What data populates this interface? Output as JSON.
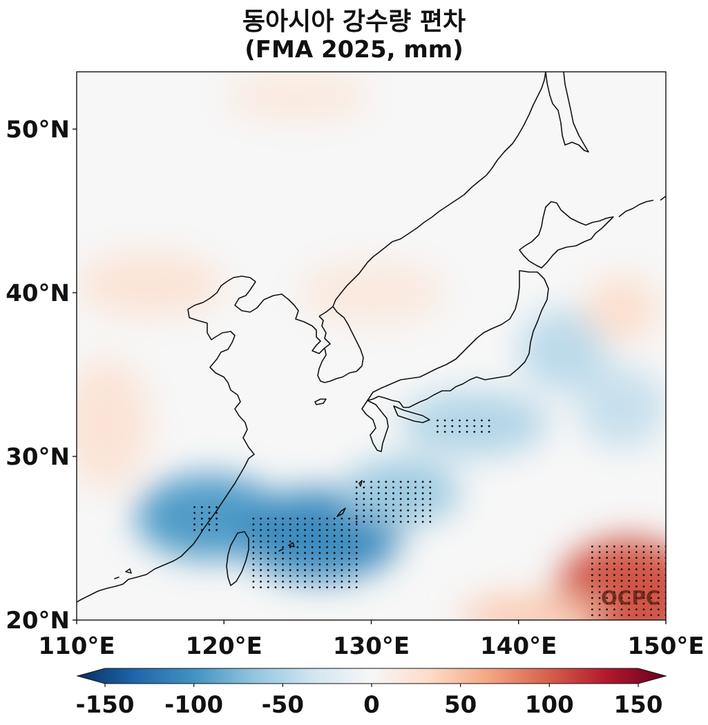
{
  "title": "동아시아 강수량 편차",
  "subtitle": "(FMA 2025, mm)",
  "watermark": "OCPC",
  "map": {
    "lon_range": [
      110,
      150
    ],
    "lat_range": [
      20,
      53.5
    ],
    "x_ticks": [
      {
        "value": 110,
        "label": "110°E"
      },
      {
        "value": 120,
        "label": "120°E"
      },
      {
        "value": 130,
        "label": "130°E"
      },
      {
        "value": 140,
        "label": "140°E"
      },
      {
        "value": 150,
        "label": "150°E"
      }
    ],
    "y_ticks": [
      {
        "value": 20,
        "label": "20°N"
      },
      {
        "value": 30,
        "label": "30°N"
      },
      {
        "value": 40,
        "label": "40°N"
      },
      {
        "value": 50,
        "label": "50°N"
      }
    ]
  },
  "colorbar": {
    "min": -150,
    "max": 150,
    "ticks": [
      {
        "value": -150,
        "label": "-150"
      },
      {
        "value": -100,
        "label": "-100"
      },
      {
        "value": -50,
        "label": "-50"
      },
      {
        "value": 0,
        "label": "0"
      },
      {
        "value": 50,
        "label": "50"
      },
      {
        "value": 100,
        "label": "100"
      },
      {
        "value": 150,
        "label": "150"
      }
    ],
    "colors": [
      "#053061",
      "#2166ac",
      "#4393c3",
      "#92c5de",
      "#d1e5f0",
      "#f7f7f7",
      "#fddbc7",
      "#f4a582",
      "#d6604d",
      "#b2182b",
      "#67001f"
    ]
  },
  "anomalies": [
    {
      "name": "south-china-sea-dry",
      "lon": 119,
      "lat": 26.3,
      "rx": 5,
      "ry": 2.6,
      "value": -85
    },
    {
      "name": "east-china-sea-dry",
      "lon": 126.5,
      "lat": 25.2,
      "rx": 5.5,
      "ry": 2.8,
      "value": -95
    },
    {
      "name": "okinawa-dry",
      "lon": 132,
      "lat": 27.8,
      "rx": 4,
      "ry": 2,
      "value": -55
    },
    {
      "name": "pacific-south-japan-dry",
      "lon": 137,
      "lat": 32,
      "rx": 5,
      "ry": 2,
      "value": -45
    },
    {
      "name": "honshu-east-dry",
      "lon": 143,
      "lat": 36.5,
      "rx": 3,
      "ry": 2.5,
      "value": -40
    },
    {
      "name": "pacific-east-dry",
      "lon": 147,
      "lat": 33,
      "rx": 3,
      "ry": 2.5,
      "value": -35
    },
    {
      "name": "hokkaido-east-wet",
      "lon": 147,
      "lat": 39,
      "rx": 2.5,
      "ry": 2,
      "value": 25
    },
    {
      "name": "north-china-wet",
      "lon": 115,
      "lat": 40.5,
      "rx": 5,
      "ry": 2,
      "value": 20
    },
    {
      "name": "mongolia-wet",
      "lon": 125,
      "lat": 52,
      "rx": 5,
      "ry": 1.5,
      "value": 15
    },
    {
      "name": "manchuria-wet",
      "lon": 130,
      "lat": 40,
      "rx": 5,
      "ry": 2,
      "value": 15
    },
    {
      "name": "south-china-wet",
      "lon": 112,
      "lat": 32,
      "rx": 3,
      "ry": 4,
      "value": 20
    },
    {
      "name": "pacific-southeast-wet",
      "lon": 147.5,
      "lat": 21.5,
      "rx": 5,
      "ry": 3.5,
      "value": 95
    },
    {
      "name": "pacific-south-wet",
      "lon": 141,
      "lat": 20.3,
      "rx": 5,
      "ry": 1.2,
      "value": 40
    }
  ],
  "stipple_regions": [
    {
      "name": "taiwan-strait",
      "lon": [
        118,
        119.5
      ],
      "lat": [
        25.5,
        27
      ]
    },
    {
      "name": "east-of-taiwan",
      "lon": [
        122,
        129
      ],
      "lat": [
        22,
        26.2
      ]
    },
    {
      "name": "ryukyu-south",
      "lon": [
        129,
        134
      ],
      "lat": [
        26,
        28.5
      ]
    },
    {
      "name": "shikoku-south",
      "lon": [
        134.5,
        138
      ],
      "lat": [
        31.5,
        32.3
      ]
    },
    {
      "name": "pacific-southeast",
      "lon": [
        145,
        150
      ],
      "lat": [
        20.3,
        24.8
      ]
    }
  ]
}
